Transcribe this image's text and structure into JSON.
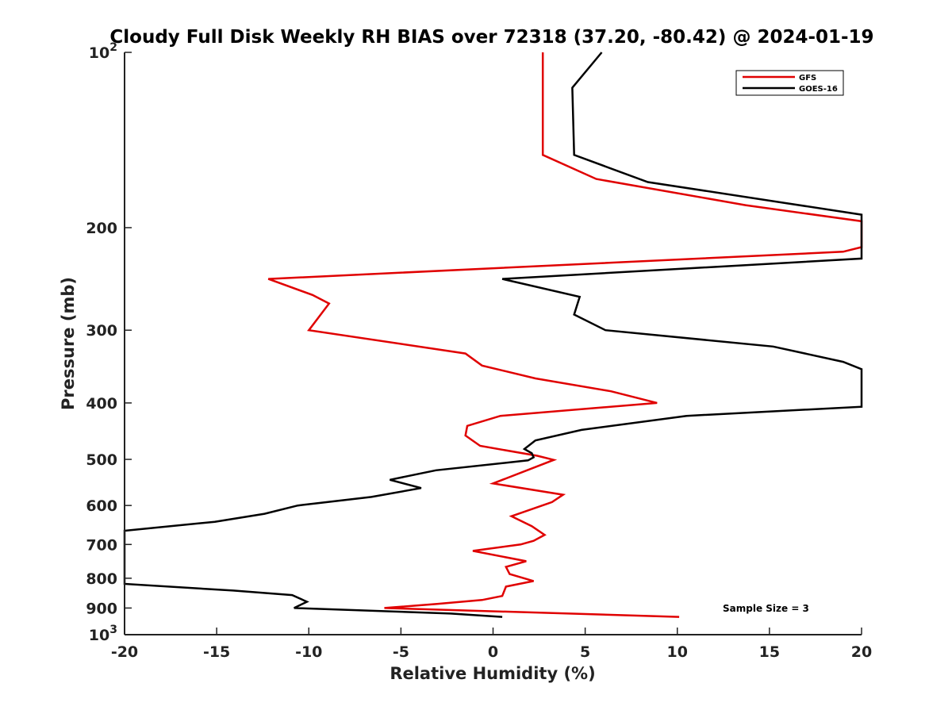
{
  "chart_data": {
    "type": "line",
    "title": "Cloudy Full Disk Weekly RH BIAS over 72318 (37.20, -80.42) @ 2024-01-19",
    "xlabel": "Relative Humidity (%)",
    "ylabel": "Pressure (mb)",
    "xlim": [
      -20,
      20
    ],
    "ylim": [
      100,
      1000
    ],
    "yscale": "log",
    "y_reversed": true,
    "xticks": [
      "-20",
      "-15",
      "-10",
      "-5",
      "0",
      "5",
      "10",
      "15",
      "20"
    ],
    "yticks": [
      {
        "value": 100,
        "base": "10",
        "exp": "2"
      },
      {
        "value": 200,
        "label": "200"
      },
      {
        "value": 300,
        "label": "300"
      },
      {
        "value": 400,
        "label": "400"
      },
      {
        "value": 500,
        "label": "500"
      },
      {
        "value": 600,
        "label": "600"
      },
      {
        "value": 700,
        "label": "700"
      },
      {
        "value": 800,
        "label": "800"
      },
      {
        "value": 900,
        "label": "900"
      },
      {
        "value": 1000,
        "base": "10",
        "exp": "3"
      }
    ],
    "grid": false,
    "legend_position": "top-right",
    "annotation": "Sample Size = 3",
    "series": [
      {
        "name": "GFS",
        "color": "#e00000",
        "points": [
          [
            2.7,
            100
          ],
          [
            2.7,
            100
          ],
          [
            2.7,
            150
          ],
          [
            5.6,
            165
          ],
          [
            13.7,
            183
          ],
          [
            20.0,
            195
          ],
          [
            20.0,
            216
          ],
          [
            19.0,
            220
          ],
          [
            -12.2,
            245
          ],
          [
            -9.8,
            261
          ],
          [
            -8.9,
            270
          ],
          [
            -10.0,
            300
          ],
          [
            -1.5,
            329
          ],
          [
            -0.6,
            345
          ],
          [
            2.3,
            363
          ],
          [
            6.4,
            382
          ],
          [
            8.9,
            400
          ],
          [
            0.4,
            421
          ],
          [
            -1.4,
            438
          ],
          [
            -1.5,
            455
          ],
          [
            -0.7,
            474
          ],
          [
            2.4,
            493
          ],
          [
            3.3,
            501
          ],
          [
            0.0,
            550
          ],
          [
            3.8,
            575
          ],
          [
            3.2,
            592
          ],
          [
            1.0,
            626
          ],
          [
            2.1,
            651
          ],
          [
            2.8,
            674
          ],
          [
            2.2,
            690
          ],
          [
            1.5,
            700
          ],
          [
            -1.1,
            718
          ],
          [
            1.8,
            748
          ],
          [
            0.7,
            765
          ],
          [
            0.9,
            787
          ],
          [
            2.2,
            809
          ],
          [
            0.7,
            827
          ],
          [
            0.5,
            858
          ],
          [
            -0.6,
            872
          ],
          [
            -3.1,
            886
          ],
          [
            -5.9,
            900
          ],
          [
            10.1,
            932
          ]
        ]
      },
      {
        "name": "GOES-16",
        "color": "#000000",
        "points": [
          [
            5.9,
            100
          ],
          [
            4.3,
            115
          ],
          [
            4.4,
            150
          ],
          [
            8.4,
            167
          ],
          [
            20.0,
            190
          ],
          [
            20.0,
            226
          ],
          [
            0.5,
            245
          ],
          [
            4.7,
            263
          ],
          [
            4.4,
            282
          ],
          [
            6.1,
            300
          ],
          [
            15.2,
            320
          ],
          [
            19.0,
            340
          ],
          [
            20.0,
            350
          ],
          [
            20.0,
            406
          ],
          [
            10.5,
            421
          ],
          [
            4.8,
            445
          ],
          [
            2.3,
            464
          ],
          [
            1.7,
            480
          ],
          [
            2.1,
            488
          ],
          [
            2.2,
            496
          ],
          [
            1.9,
            502
          ],
          [
            -3.1,
            522
          ],
          [
            -5.6,
            542
          ],
          [
            -3.9,
            560
          ],
          [
            -6.6,
            580
          ],
          [
            -10.6,
            600
          ],
          [
            -12.4,
            620
          ],
          [
            -15.1,
            640
          ],
          [
            -20.0,
            663
          ],
          [
            -20.0,
            818
          ],
          [
            -14.1,
            840
          ],
          [
            -10.9,
            855
          ],
          [
            -10.1,
            878
          ],
          [
            -10.8,
            900
          ],
          [
            -2.3,
            920
          ],
          [
            0.5,
            932
          ]
        ]
      }
    ]
  }
}
